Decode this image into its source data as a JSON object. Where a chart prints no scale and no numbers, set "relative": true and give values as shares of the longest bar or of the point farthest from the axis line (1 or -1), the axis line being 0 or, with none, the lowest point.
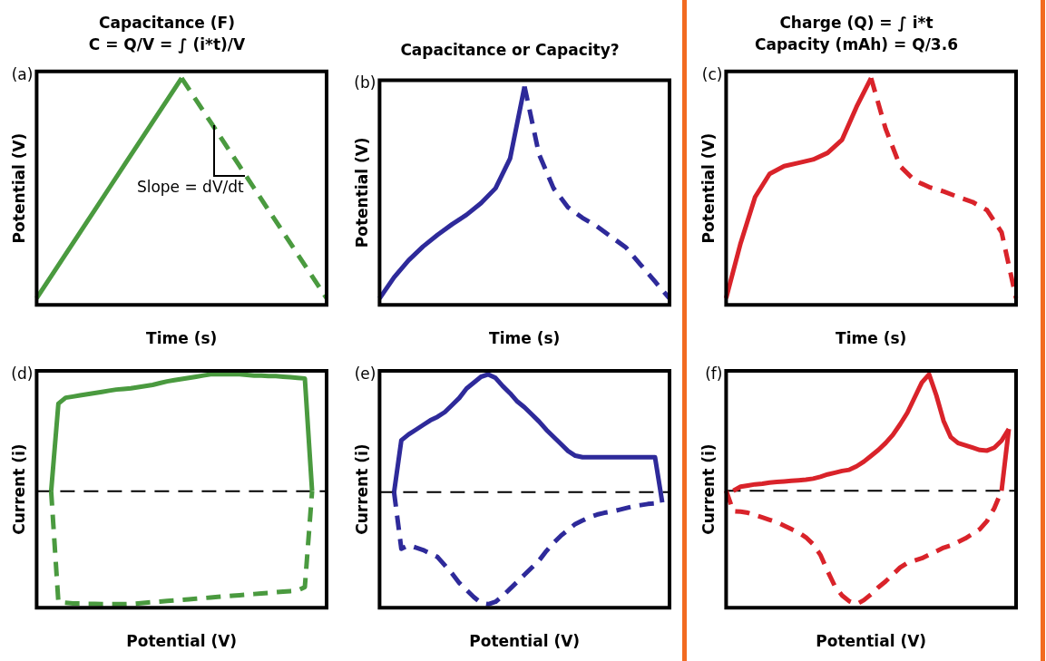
{
  "chart_data": [
    {
      "type": "line",
      "title": "Capacitance (F)",
      "subtitle": "C = Q/V = ∫ (i*t)/V",
      "xlabel": "Time (s)",
      "ylabel": "Potential (V)",
      "relative": true,
      "grid": false,
      "legend": false,
      "annotations": [
        "(a)",
        "Slope = dV/dt"
      ],
      "categories": [
        null,
        null,
        null,
        null,
        null,
        null,
        null,
        null,
        null,
        null,
        null,
        null,
        null,
        null,
        null,
        null,
        null,
        null,
        null,
        null,
        null
      ],
      "series": [
        {
          "color": "#4a9a3f",
          "line_style": "solid",
          "values": [
            0,
            0.1,
            0.2,
            0.3,
            0.4,
            0.5,
            0.6,
            0.7,
            0.8,
            0.9,
            1,
            null,
            null,
            null,
            null,
            null,
            null,
            null,
            null,
            null,
            null
          ]
        },
        {
          "color": "#4a9a3f",
          "line_style": "dashed",
          "values": [
            null,
            null,
            null,
            null,
            null,
            null,
            null,
            null,
            null,
            null,
            1,
            0.9,
            0.8,
            0.7,
            0.6,
            0.5,
            0.4,
            0.3,
            0.2,
            0.1,
            0
          ]
        }
      ]
    },
    {
      "type": "line",
      "title": "Capacitance or Capacity?",
      "xlabel": "Time (s)",
      "ylabel": "Potential (V)",
      "relative": true,
      "grid": false,
      "legend": false,
      "annotations": [
        "(b)"
      ],
      "categories": [
        null,
        null,
        null,
        null,
        null,
        null,
        null,
        null,
        null,
        null,
        null,
        null,
        null,
        null,
        null,
        null,
        null,
        null,
        null,
        null,
        null
      ],
      "series": [
        {
          "color": "#2e2a9a",
          "line_style": "solid",
          "values": [
            0,
            0.1,
            0.18,
            0.245,
            0.3,
            0.35,
            0.395,
            0.45,
            0.52,
            0.66,
            1,
            null,
            null,
            null,
            null,
            null,
            null,
            null,
            null,
            null,
            null
          ]
        },
        {
          "color": "#2e2a9a",
          "line_style": "dashed",
          "values": [
            null,
            null,
            null,
            null,
            null,
            null,
            null,
            null,
            null,
            null,
            1,
            0.68,
            0.52,
            0.43,
            0.38,
            0.34,
            0.29,
            0.24,
            0.16,
            0.08,
            0
          ]
        }
      ]
    },
    {
      "type": "line",
      "title": "Charge (Q) = ∫ i*t",
      "subtitle": "Capacity (mAh) = Q/3.6",
      "xlabel": "Time (s)",
      "ylabel": "Potential (V)",
      "relative": true,
      "grid": false,
      "legend": false,
      "annotations": [
        "(c)"
      ],
      "categories": [
        null,
        null,
        null,
        null,
        null,
        null,
        null,
        null,
        null,
        null,
        null,
        null,
        null,
        null,
        null,
        null,
        null,
        null,
        null,
        null,
        null
      ],
      "series": [
        {
          "color": "#d9232a",
          "line_style": "solid",
          "values": [
            0,
            0.25,
            0.46,
            0.565,
            0.6,
            0.615,
            0.63,
            0.66,
            0.72,
            0.87,
            1,
            null,
            null,
            null,
            null,
            null,
            null,
            null,
            null,
            null,
            null
          ]
        },
        {
          "color": "#d9232a",
          "line_style": "dashed",
          "values": [
            null,
            null,
            null,
            null,
            null,
            null,
            null,
            null,
            null,
            null,
            1,
            0.77,
            0.6,
            0.535,
            0.505,
            0.485,
            0.46,
            0.437,
            0.4,
            0.3,
            0
          ]
        }
      ]
    },
    {
      "type": "line",
      "xlabel": "Potential (V)",
      "ylabel": "Current (i)",
      "relative": true,
      "grid": false,
      "legend": false,
      "annotations": [
        "(d)"
      ],
      "ref_lines": [
        {
          "axis": "y",
          "value": 0,
          "color": "#000000",
          "line_style": "dashed"
        }
      ],
      "categories": [
        null,
        null,
        null,
        null,
        null,
        null,
        null,
        null,
        null,
        null,
        null,
        null,
        null,
        null,
        null,
        null,
        null,
        null,
        null,
        null,
        null,
        null,
        null,
        null,
        null,
        null,
        null,
        null,
        null,
        null,
        null,
        null,
        null,
        null,
        null,
        null,
        null,
        null,
        null,
        null,
        null
      ],
      "series": [
        {
          "color": "#4a9a3f",
          "line_style": "solid",
          "values": [
            null,
            null,
            0,
            0.75,
            0.8,
            0.81,
            0.82,
            0.83,
            0.84,
            0.85,
            0.86,
            0.87,
            0.875,
            0.88,
            0.89,
            0.9,
            0.91,
            0.925,
            0.94,
            0.95,
            0.96,
            0.97,
            0.98,
            0.99,
            1,
            1,
            1,
            1,
            1,
            0.995,
            0.99,
            0.99,
            0.985,
            0.985,
            0.98,
            0.975,
            0.97,
            0.965,
            0,
            null,
            null
          ]
        },
        {
          "color": "#4a9a3f",
          "line_style": "dashed",
          "values": [
            null,
            null,
            0,
            -0.95,
            -0.955,
            -0.96,
            -0.96,
            -0.965,
            -0.965,
            -0.967,
            -0.967,
            -0.967,
            -0.967,
            -0.965,
            -0.96,
            -0.955,
            -0.95,
            -0.945,
            -0.94,
            -0.935,
            -0.93,
            -0.925,
            -0.92,
            -0.915,
            -0.91,
            -0.905,
            -0.9,
            -0.895,
            -0.89,
            -0.885,
            -0.88,
            -0.875,
            -0.87,
            -0.865,
            -0.86,
            -0.855,
            -0.85,
            -0.82,
            0,
            null,
            null
          ]
        }
      ]
    },
    {
      "type": "line",
      "xlabel": "Potential (V)",
      "ylabel": "Current (i)",
      "relative": true,
      "grid": false,
      "legend": false,
      "annotations": [
        "(e)"
      ],
      "ref_lines": [
        {
          "axis": "y",
          "value": 0,
          "color": "#000000",
          "line_style": "dashed"
        }
      ],
      "categories": [
        null,
        null,
        null,
        null,
        null,
        null,
        null,
        null,
        null,
        null,
        null,
        null,
        null,
        null,
        null,
        null,
        null,
        null,
        null,
        null,
        null,
        null,
        null,
        null,
        null,
        null,
        null,
        null,
        null,
        null,
        null,
        null,
        null,
        null,
        null,
        null,
        null,
        null,
        null,
        null,
        null
      ],
      "series": [
        {
          "color": "#2e2a9a",
          "line_style": "solid",
          "values": [
            null,
            null,
            0,
            0.44,
            0.49,
            0.53,
            0.57,
            0.61,
            0.64,
            0.68,
            0.74,
            0.8,
            0.88,
            0.93,
            0.98,
            1,
            0.97,
            0.9,
            0.84,
            0.77,
            0.72,
            0.66,
            0.6,
            0.53,
            0.47,
            0.41,
            0.35,
            0.31,
            0.297,
            0.297,
            0.297,
            0.297,
            0.297,
            0.297,
            0.297,
            0.297,
            0.297,
            0.297,
            0.297,
            -0.086,
            null
          ]
        },
        {
          "color": "#2e2a9a",
          "line_style": "dashed",
          "values": [
            null,
            null,
            0,
            -0.48,
            -0.45,
            -0.47,
            -0.49,
            -0.52,
            -0.55,
            -0.62,
            -0.69,
            -0.77,
            -0.83,
            -0.89,
            -0.94,
            -0.95,
            -0.93,
            -0.88,
            -0.82,
            -0.76,
            -0.7,
            -0.64,
            -0.58,
            -0.5,
            -0.43,
            -0.37,
            -0.32,
            -0.27,
            -0.24,
            -0.21,
            -0.19,
            -0.175,
            -0.165,
            -0.15,
            -0.135,
            -0.12,
            -0.11,
            -0.1,
            -0.095,
            -0.086,
            null
          ]
        }
      ]
    },
    {
      "type": "line",
      "xlabel": "Potential (V)",
      "ylabel": "Current (i)",
      "relative": true,
      "grid": false,
      "legend": false,
      "annotations": [
        "(f)"
      ],
      "ref_lines": [
        {
          "axis": "y",
          "value": 0,
          "color": "#000000",
          "line_style": "dashed"
        }
      ],
      "categories": [
        null,
        null,
        null,
        null,
        null,
        null,
        null,
        null,
        null,
        null,
        null,
        null,
        null,
        null,
        null,
        null,
        null,
        null,
        null,
        null,
        null,
        null,
        null,
        null,
        null,
        null,
        null,
        null,
        null,
        null,
        null,
        null,
        null,
        null,
        null,
        null,
        null,
        null,
        null,
        null,
        null
      ],
      "series": [
        {
          "color": "#d9232a",
          "line_style": "solid",
          "values": [
            null,
            0,
            0.035,
            0.045,
            0.055,
            0.06,
            0.07,
            0.075,
            0.08,
            0.085,
            0.09,
            0.095,
            0.104,
            0.12,
            0.14,
            0.155,
            0.17,
            0.18,
            0.21,
            0.25,
            0.3,
            0.35,
            0.41,
            0.48,
            0.57,
            0.67,
            0.8,
            0.93,
            1,
            0.82,
            0.6,
            0.46,
            0.41,
            0.39,
            0.37,
            0.35,
            0.345,
            0.37,
            0.43,
            0.53,
            null
          ]
        },
        {
          "color": "#d9232a",
          "line_style": "solid",
          "values": [
            null,
            null,
            null,
            null,
            null,
            null,
            null,
            null,
            null,
            null,
            null,
            null,
            null,
            null,
            null,
            null,
            null,
            null,
            null,
            null,
            null,
            null,
            null,
            null,
            null,
            null,
            null,
            null,
            null,
            null,
            null,
            null,
            null,
            null,
            null,
            null,
            null,
            null,
            0,
            0.53,
            null
          ]
        },
        {
          "color": "#d9232a",
          "line_style": "dashed",
          "values": [
            0,
            -0.176,
            -0.18,
            -0.19,
            -0.21,
            -0.23,
            -0.25,
            -0.27,
            -0.3,
            -0.33,
            -0.36,
            -0.4,
            -0.46,
            -0.55,
            -0.69,
            -0.82,
            -0.9,
            -0.95,
            -0.975,
            -0.94,
            -0.89,
            -0.83,
            -0.78,
            -0.72,
            -0.66,
            -0.62,
            -0.6,
            -0.58,
            -0.55,
            -0.52,
            -0.49,
            -0.47,
            -0.44,
            -0.41,
            -0.37,
            -0.33,
            -0.26,
            -0.15,
            0,
            null,
            null
          ]
        }
      ]
    }
  ]
}
